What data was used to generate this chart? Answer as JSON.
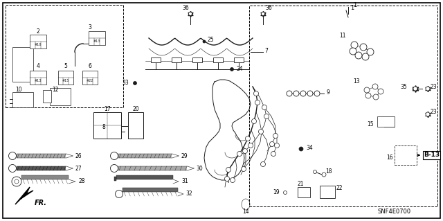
{
  "bg_color": "#f0f0f0",
  "border_color": "#000000",
  "dc": "#1a1a1a",
  "tc": "#000000",
  "figsize": [
    6.4,
    3.19
  ],
  "dpi": 100,
  "code_text": "SNF4E0700",
  "b13_text": "B-13"
}
